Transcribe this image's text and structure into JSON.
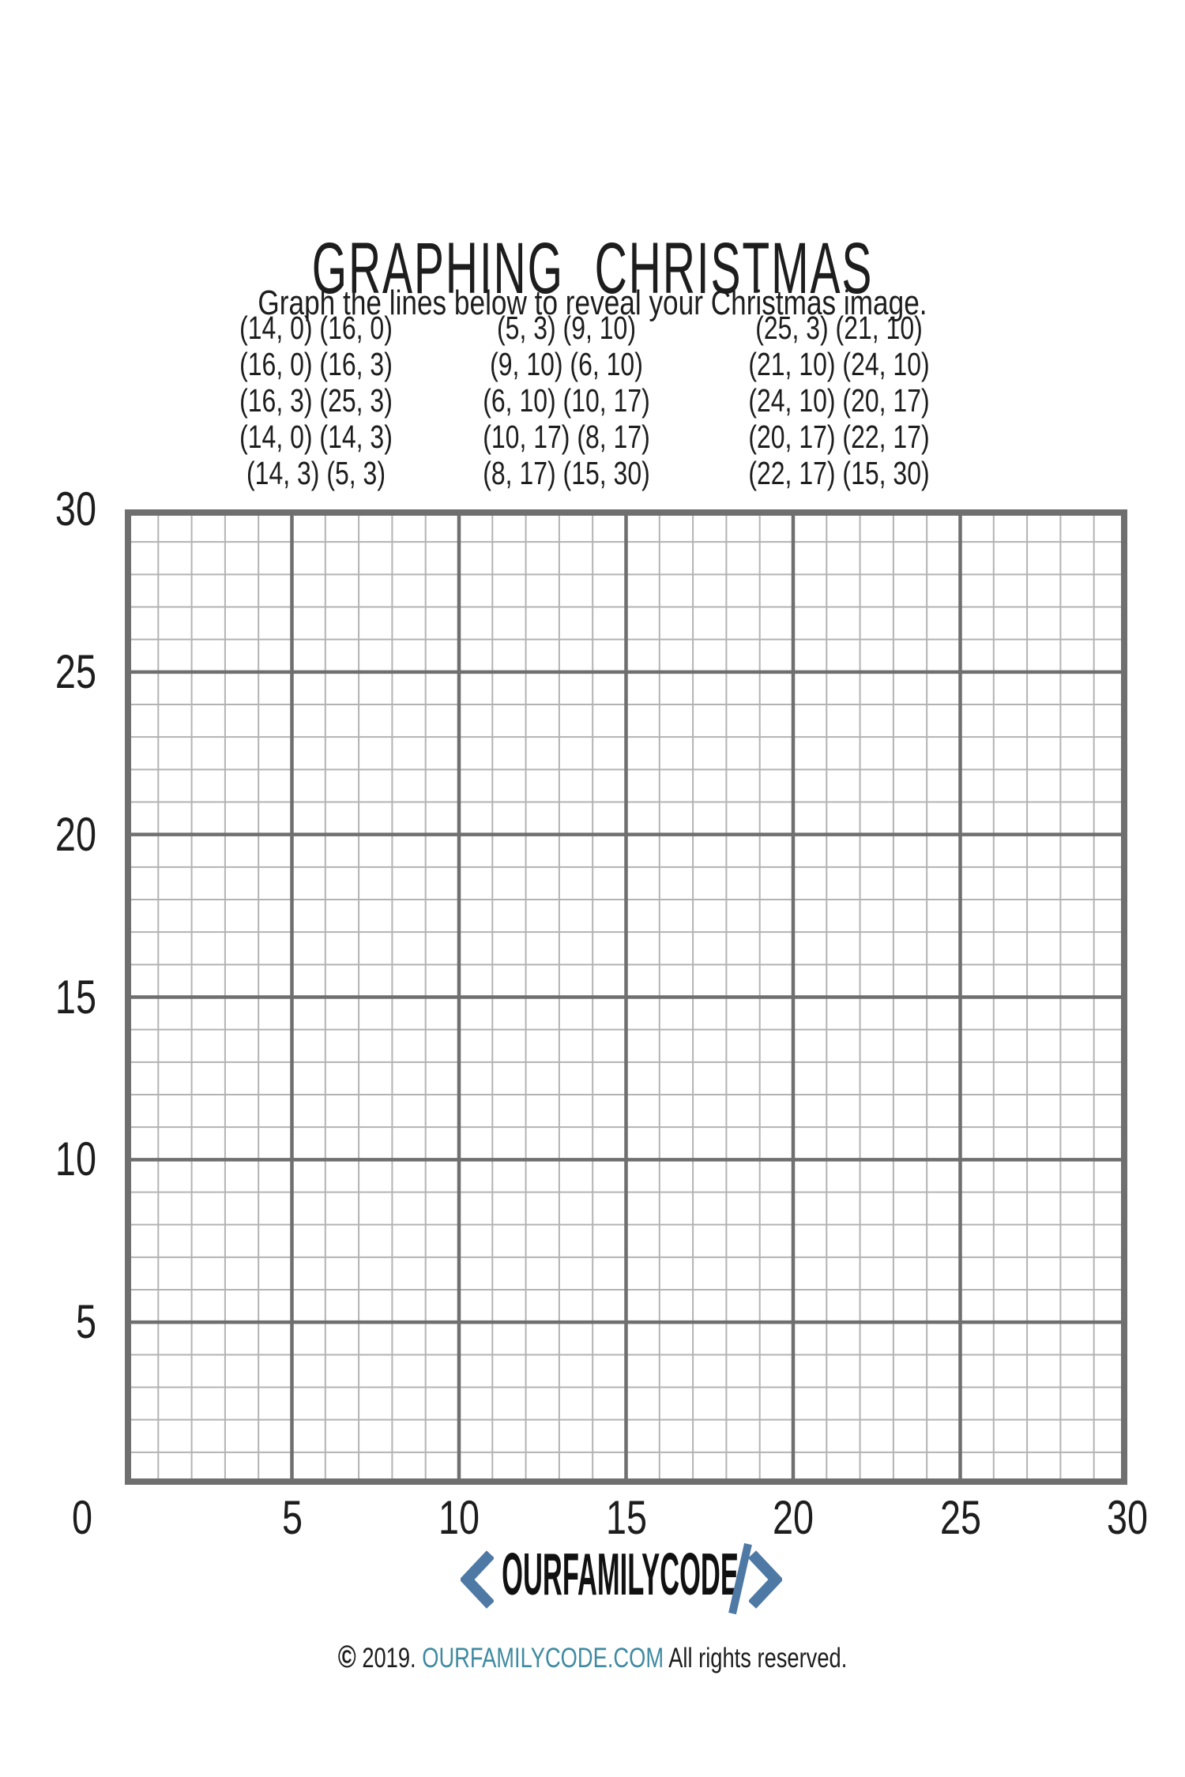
{
  "page": {
    "title": "GRAPHING  CHRISTMAS",
    "subtitle": "Graph the lines below to reveal your Christmas image."
  },
  "instructions": {
    "columns": [
      [
        "(14, 0) (16, 0)",
        "(16, 0) (16, 3)",
        "(16, 3) (25, 3)",
        "(14, 0) (14, 3)",
        "(14, 3) (5, 3)"
      ],
      [
        "(5, 3) (9, 10)",
        "(9, 10) (6, 10)",
        "(6, 10) (10, 17)",
        "(10, 17) (8, 17)",
        "(8, 17) (15, 30)"
      ],
      [
        "(25, 3) (21, 10)",
        "(21, 10) (24, 10)",
        "(24, 10) (20, 17)",
        "(20, 17) (22, 17)",
        "(22, 17) (15, 30)"
      ]
    ]
  },
  "chart_data": {
    "type": "line",
    "title": "GRAPHING CHRISTMAS",
    "xlabel": "",
    "ylabel": "",
    "xlim": [
      0,
      30
    ],
    "ylim": [
      0,
      30
    ],
    "x_ticks": [
      0,
      5,
      10,
      15,
      20,
      25,
      30
    ],
    "y_ticks": [
      0,
      5,
      10,
      15,
      20,
      25,
      30
    ],
    "minor_step": 1,
    "major_step": 5,
    "grid": "on",
    "plotted_series": [],
    "segments_to_draw": [
      [
        [
          14,
          0
        ],
        [
          16,
          0
        ]
      ],
      [
        [
          16,
          0
        ],
        [
          16,
          3
        ]
      ],
      [
        [
          16,
          3
        ],
        [
          25,
          3
        ]
      ],
      [
        [
          14,
          0
        ],
        [
          14,
          3
        ]
      ],
      [
        [
          14,
          3
        ],
        [
          5,
          3
        ]
      ],
      [
        [
          5,
          3
        ],
        [
          9,
          10
        ]
      ],
      [
        [
          9,
          10
        ],
        [
          6,
          10
        ]
      ],
      [
        [
          6,
          10
        ],
        [
          10,
          17
        ]
      ],
      [
        [
          10,
          17
        ],
        [
          8,
          17
        ]
      ],
      [
        [
          8,
          17
        ],
        [
          15,
          30
        ]
      ],
      [
        [
          25,
          3
        ],
        [
          21,
          10
        ]
      ],
      [
        [
          21,
          10
        ],
        [
          24,
          10
        ]
      ],
      [
        [
          24,
          10
        ],
        [
          20,
          17
        ]
      ],
      [
        [
          20,
          17
        ],
        [
          22,
          17
        ]
      ],
      [
        [
          22,
          17
        ],
        [
          15,
          30
        ]
      ]
    ]
  },
  "footer": {
    "logo": {
      "left_bracket": "<",
      "name": "OURFAMILYCODE",
      "slash": "/",
      "right_bracket": ">"
    },
    "copyright": {
      "symbol": "©",
      "year": "2019.",
      "site": "OURFAMILYCODE.COM",
      "rights": "All rights reserved."
    }
  },
  "colors": {
    "text": "#1d1d1d",
    "grid_minor": "#b3b3b3",
    "grid_major": "#6f6f6f",
    "grid_border": "#6f6f6f",
    "logo_blue": "#4e79a4",
    "site_teal": "#3f8aa1"
  }
}
